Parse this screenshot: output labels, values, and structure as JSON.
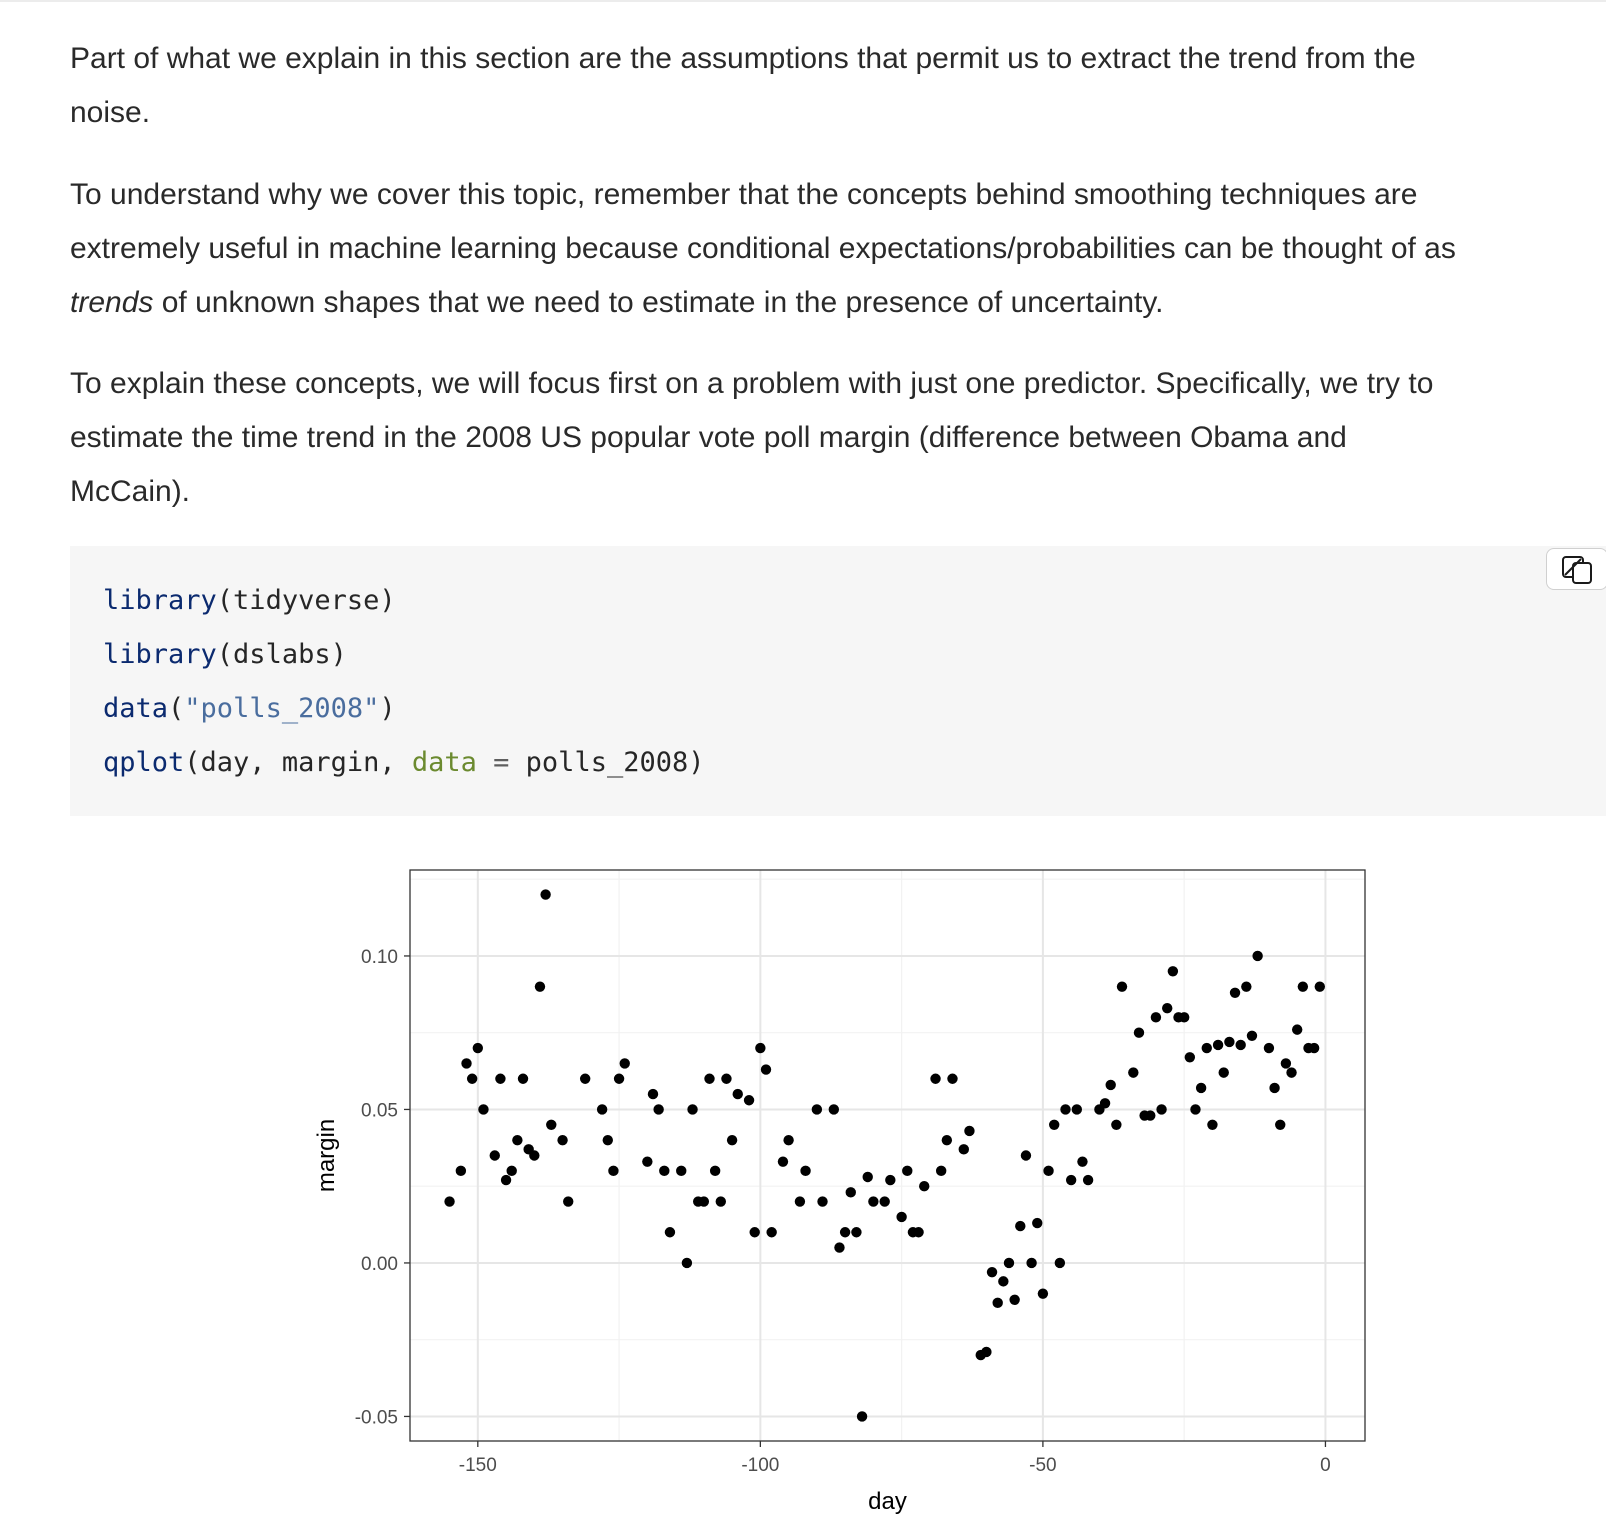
{
  "paragraphs": {
    "p1": {
      "line1": "Part of what we explain in this section are the assumptions that permit us to extract the trend from the",
      "line2": "noise."
    },
    "p2": {
      "line1": "To understand why we cover this topic, remember that the concepts behind smoothing techniques are",
      "line2": "extremely useful in machine learning because conditional expectations/probabilities can be thought of as",
      "line3_em": "trends",
      "line3_rest": " of unknown shapes that we need to estimate in the presence of uncertainty."
    },
    "p3": {
      "line1": "To explain these concepts, we will focus first on a problem with just one predictor. Specifically, we try to",
      "line2": "estimate the time trend in the 2008 US popular vote poll margin (difference between Obama and",
      "line3": "McCain)."
    }
  },
  "code": {
    "line1": {
      "fn": "library",
      "rest": "(tidyverse)"
    },
    "line2": {
      "fn": "library",
      "rest": "(dslabs)"
    },
    "line3": {
      "fn": "data",
      "open": "(",
      "str": "\"polls_2008\"",
      "close": ")"
    },
    "line4": {
      "fn": "qplot",
      "pre": "(day, margin, ",
      "arg": "data",
      "op": " = ",
      "post": "polls_2008)"
    }
  },
  "copy_button": {
    "icon": "copy-icon"
  },
  "chart_data": {
    "type": "scatter",
    "title": "",
    "xlabel": "day",
    "ylabel": "margin",
    "xlim": [
      -162,
      7
    ],
    "ylim": [
      -0.058,
      0.128
    ],
    "xticks": [
      -150,
      -100,
      -50,
      0
    ],
    "xtick_labels": [
      "-150",
      "-100",
      "-50",
      "0"
    ],
    "yticks": [
      -0.05,
      0.0,
      0.05,
      0.1
    ],
    "ytick_labels": [
      "-0.05",
      "0.00",
      "0.05",
      "0.10"
    ],
    "grid": true,
    "point_color": "#000000",
    "points": [
      [
        -155,
        0.02
      ],
      [
        -153,
        0.03
      ],
      [
        -152,
        0.065
      ],
      [
        -151,
        0.06
      ],
      [
        -150,
        0.07
      ],
      [
        -149,
        0.05
      ],
      [
        -147,
        0.035
      ],
      [
        -146,
        0.06
      ],
      [
        -145,
        0.027
      ],
      [
        -144,
        0.03
      ],
      [
        -143,
        0.04
      ],
      [
        -142,
        0.06
      ],
      [
        -141,
        0.037
      ],
      [
        -140,
        0.035
      ],
      [
        -139,
        0.09
      ],
      [
        -138,
        0.12
      ],
      [
        -137,
        0.045
      ],
      [
        -135,
        0.04
      ],
      [
        -134,
        0.02
      ],
      [
        -131,
        0.06
      ],
      [
        -128,
        0.05
      ],
      [
        -127,
        0.04
      ],
      [
        -126,
        0.03
      ],
      [
        -125,
        0.06
      ],
      [
        -124,
        0.065
      ],
      [
        -120,
        0.033
      ],
      [
        -119,
        0.055
      ],
      [
        -118,
        0.05
      ],
      [
        -117,
        0.03
      ],
      [
        -116,
        0.01
      ],
      [
        -114,
        0.03
      ],
      [
        -113,
        0.0
      ],
      [
        -112,
        0.05
      ],
      [
        -111,
        0.02
      ],
      [
        -110,
        0.02
      ],
      [
        -109,
        0.06
      ],
      [
        -108,
        0.03
      ],
      [
        -107,
        0.02
      ],
      [
        -106,
        0.06
      ],
      [
        -105,
        0.04
      ],
      [
        -104,
        0.055
      ],
      [
        -102,
        0.053
      ],
      [
        -101,
        0.01
      ],
      [
        -100,
        0.07
      ],
      [
        -99,
        0.063
      ],
      [
        -98,
        0.01
      ],
      [
        -96,
        0.033
      ],
      [
        -95,
        0.04
      ],
      [
        -93,
        0.02
      ],
      [
        -92,
        0.03
      ],
      [
        -90,
        0.05
      ],
      [
        -89,
        0.02
      ],
      [
        -87,
        0.05
      ],
      [
        -86,
        0.005
      ],
      [
        -85,
        0.01
      ],
      [
        -84,
        0.023
      ],
      [
        -83,
        0.01
      ],
      [
        -82,
        -0.05
      ],
      [
        -81,
        0.028
      ],
      [
        -80,
        0.02
      ],
      [
        -78,
        0.02
      ],
      [
        -77,
        0.027
      ],
      [
        -75,
        0.015
      ],
      [
        -74,
        0.03
      ],
      [
        -73,
        0.01
      ],
      [
        -72,
        0.01
      ],
      [
        -71,
        0.025
      ],
      [
        -69,
        0.06
      ],
      [
        -68,
        0.03
      ],
      [
        -67,
        0.04
      ],
      [
        -66,
        0.06
      ],
      [
        -64,
        0.037
      ],
      [
        -63,
        0.043
      ],
      [
        -61,
        -0.03
      ],
      [
        -60,
        -0.029
      ],
      [
        -59,
        -0.003
      ],
      [
        -58,
        -0.013
      ],
      [
        -57,
        -0.006
      ],
      [
        -56,
        0.0
      ],
      [
        -55,
        -0.012
      ],
      [
        -54,
        0.012
      ],
      [
        -53,
        0.035
      ],
      [
        -52,
        0.0
      ],
      [
        -51,
        0.013
      ],
      [
        -50,
        -0.01
      ],
      [
        -49,
        0.03
      ],
      [
        -48,
        0.045
      ],
      [
        -47,
        0.0
      ],
      [
        -46,
        0.05
      ],
      [
        -45,
        0.027
      ],
      [
        -44,
        0.05
      ],
      [
        -43,
        0.033
      ],
      [
        -42,
        0.027
      ],
      [
        -40,
        0.05
      ],
      [
        -39,
        0.052
      ],
      [
        -38,
        0.058
      ],
      [
        -37,
        0.045
      ],
      [
        -36,
        0.09
      ],
      [
        -34,
        0.062
      ],
      [
        -33,
        0.075
      ],
      [
        -32,
        0.048
      ],
      [
        -31,
        0.048
      ],
      [
        -30,
        0.08
      ],
      [
        -29,
        0.05
      ],
      [
        -28,
        0.083
      ],
      [
        -27,
        0.095
      ],
      [
        -26,
        0.08
      ],
      [
        -25,
        0.08
      ],
      [
        -24,
        0.067
      ],
      [
        -23,
        0.05
      ],
      [
        -22,
        0.057
      ],
      [
        -21,
        0.07
      ],
      [
        -20,
        0.045
      ],
      [
        -19,
        0.071
      ],
      [
        -18,
        0.062
      ],
      [
        -17,
        0.072
      ],
      [
        -16,
        0.088
      ],
      [
        -15,
        0.071
      ],
      [
        -14,
        0.09
      ],
      [
        -13,
        0.074
      ],
      [
        -12,
        0.1
      ],
      [
        -10,
        0.07
      ],
      [
        -9,
        0.057
      ],
      [
        -8,
        0.045
      ],
      [
        -7,
        0.065
      ],
      [
        -6,
        0.062
      ],
      [
        -5,
        0.076
      ],
      [
        -4,
        0.09
      ],
      [
        -3,
        0.07
      ],
      [
        -2,
        0.07
      ],
      [
        -1,
        0.09
      ]
    ]
  }
}
